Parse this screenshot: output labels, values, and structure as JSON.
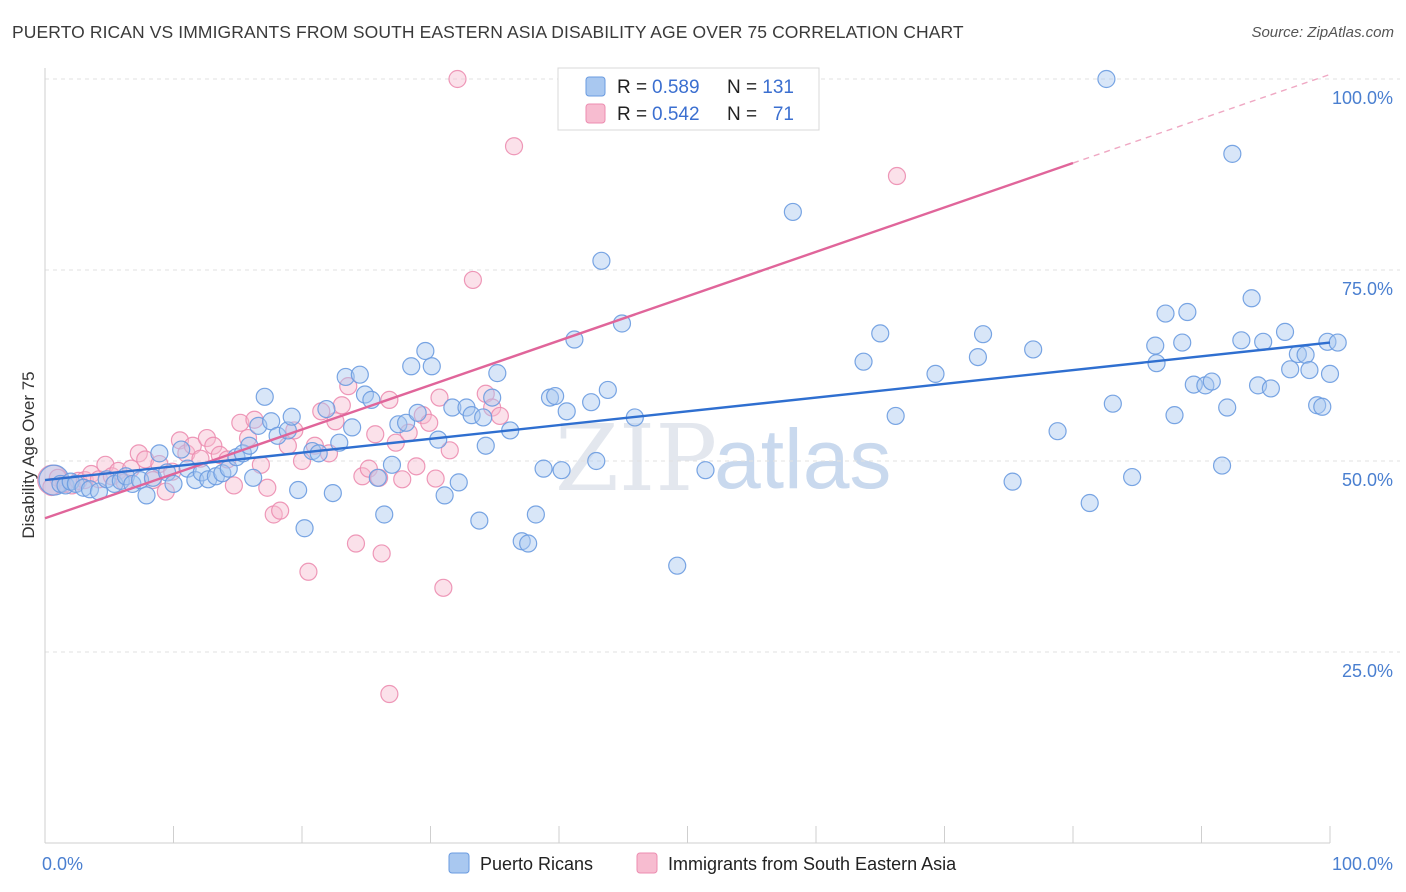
{
  "header": {
    "title": "PUERTO RICAN VS IMMIGRANTS FROM SOUTH EASTERN ASIA DISABILITY AGE OVER 75 CORRELATION CHART",
    "source": "Source: ZipAtlas.com"
  },
  "watermark": {
    "zip": "ZIP",
    "atlas": "atlas"
  },
  "chart_data": {
    "type": "scatter",
    "title": "PUERTO RICAN VS IMMIGRANTS FROM SOUTH EASTERN ASIA DISABILITY AGE OVER 75 CORRELATION CHART",
    "xlabel": "",
    "ylabel": "Disability Age Over 75",
    "xlim": [
      0,
      100
    ],
    "ylim": [
      0,
      100
    ],
    "x_tick_labels": [
      "0.0%",
      "100.0%"
    ],
    "y_tick_labels": [
      "25.0%",
      "50.0%",
      "75.0%",
      "100.0%"
    ],
    "y_ticks": [
      25,
      50,
      75,
      100
    ],
    "grid": true,
    "legend_placement": "top-center",
    "colors": {
      "blue_fill": "#a9c8f0",
      "blue_stroke": "#6a9be0",
      "blue_line": "#2f6fd0",
      "pink_fill": "#f7bcd0",
      "pink_stroke": "#ec8db0",
      "pink_line": "#e0659a"
    },
    "legend": [
      {
        "r_label": "R = ",
        "r_value": "0.589",
        "n_label": "N = ",
        "n_value": "131"
      },
      {
        "r_label": "R = ",
        "r_value": "0.542",
        "n_label": "N = ",
        "n_value": "71"
      }
    ],
    "series": [
      {
        "name": "Puerto Ricans",
        "trend": {
          "x": [
            0,
            100
          ],
          "y": [
            47.5,
            65.5
          ]
        },
        "points": [
          [
            0.7,
            47.5
          ],
          [
            1.2,
            47.0
          ],
          [
            1.6,
            46.8
          ],
          [
            2.0,
            47.3
          ],
          [
            2.4,
            47.0
          ],
          [
            3.0,
            46.5
          ],
          [
            3.5,
            46.3
          ],
          [
            4.2,
            46.0
          ],
          [
            4.8,
            47.6
          ],
          [
            5.4,
            47.0
          ],
          [
            5.9,
            47.4
          ],
          [
            6.3,
            48.0
          ],
          [
            6.8,
            47.0
          ],
          [
            7.4,
            47.5
          ],
          [
            7.9,
            45.5
          ],
          [
            8.4,
            47.8
          ],
          [
            8.9,
            51.0
          ],
          [
            9.5,
            48.5
          ],
          [
            10.0,
            47.0
          ],
          [
            10.6,
            51.5
          ],
          [
            11.1,
            49.0
          ],
          [
            11.7,
            47.5
          ],
          [
            12.2,
            48.5
          ],
          [
            12.7,
            47.6
          ],
          [
            13.3,
            48.0
          ],
          [
            13.8,
            48.4
          ],
          [
            14.3,
            49.0
          ],
          [
            14.9,
            50.5
          ],
          [
            15.4,
            51.0
          ],
          [
            15.9,
            52.0
          ],
          [
            16.2,
            47.8
          ],
          [
            16.6,
            54.6
          ],
          [
            17.1,
            58.4
          ],
          [
            17.6,
            55.2
          ],
          [
            18.1,
            53.3
          ],
          [
            18.9,
            54.0
          ],
          [
            19.2,
            55.8
          ],
          [
            19.7,
            46.2
          ],
          [
            20.2,
            41.2
          ],
          [
            20.8,
            51.3
          ],
          [
            21.3,
            51.0
          ],
          [
            21.9,
            56.8
          ],
          [
            22.4,
            45.8
          ],
          [
            22.9,
            52.4
          ],
          [
            23.4,
            61.0
          ],
          [
            23.9,
            54.4
          ],
          [
            24.5,
            61.3
          ],
          [
            24.9,
            58.7
          ],
          [
            25.4,
            58.0
          ],
          [
            25.9,
            47.8
          ],
          [
            26.4,
            43.0
          ],
          [
            27.0,
            49.5
          ],
          [
            27.5,
            54.8
          ],
          [
            28.1,
            55.0
          ],
          [
            28.5,
            62.4
          ],
          [
            29.0,
            56.3
          ],
          [
            29.6,
            64.4
          ],
          [
            30.1,
            62.4
          ],
          [
            30.6,
            52.8
          ],
          [
            31.1,
            45.5
          ],
          [
            31.7,
            57.0
          ],
          [
            32.2,
            47.2
          ],
          [
            32.8,
            57.0
          ],
          [
            33.2,
            56.0
          ],
          [
            33.8,
            42.2
          ],
          [
            34.3,
            52.0
          ],
          [
            34.8,
            58.3
          ],
          [
            35.2,
            61.5
          ],
          [
            36.2,
            54.0
          ],
          [
            37.1,
            39.5
          ],
          [
            37.6,
            39.2
          ],
          [
            38.2,
            43.0
          ],
          [
            38.8,
            49.0
          ],
          [
            39.3,
            58.3
          ],
          [
            39.7,
            58.5
          ],
          [
            40.2,
            48.8
          ],
          [
            40.6,
            56.5
          ],
          [
            41.2,
            65.9
          ],
          [
            42.5,
            57.7
          ],
          [
            42.9,
            50.0
          ],
          [
            43.3,
            76.2
          ],
          [
            43.8,
            59.3
          ],
          [
            44.9,
            68.0
          ],
          [
            45.9,
            55.7
          ],
          [
            49.2,
            36.3
          ],
          [
            51.4,
            48.8
          ],
          [
            58.2,
            82.6
          ],
          [
            63.7,
            63.0
          ],
          [
            65.0,
            66.7
          ],
          [
            66.2,
            55.9
          ],
          [
            69.3,
            61.4
          ],
          [
            72.6,
            63.6
          ],
          [
            73.0,
            66.6
          ],
          [
            75.3,
            47.3
          ],
          [
            76.9,
            64.6
          ],
          [
            78.8,
            53.9
          ],
          [
            81.3,
            44.5
          ],
          [
            83.1,
            57.5
          ],
          [
            84.6,
            47.9
          ],
          [
            86.4,
            65.1
          ],
          [
            86.5,
            62.8
          ],
          [
            87.2,
            69.3
          ],
          [
            87.9,
            56.0
          ],
          [
            88.5,
            65.5
          ],
          [
            88.9,
            69.5
          ],
          [
            89.4,
            60.0
          ],
          [
            90.3,
            59.9
          ],
          [
            90.8,
            60.4
          ],
          [
            91.6,
            49.4
          ],
          [
            92.0,
            57.0
          ],
          [
            92.4,
            90.2
          ],
          [
            93.1,
            65.8
          ],
          [
            93.9,
            71.3
          ],
          [
            94.4,
            59.9
          ],
          [
            94.8,
            65.6
          ],
          [
            95.4,
            59.5
          ],
          [
            96.5,
            66.9
          ],
          [
            96.9,
            62.0
          ],
          [
            97.5,
            64.0
          ],
          [
            98.1,
            63.9
          ],
          [
            98.4,
            61.9
          ],
          [
            99.0,
            57.3
          ],
          [
            99.4,
            57.1
          ],
          [
            99.8,
            65.6
          ],
          [
            100.0,
            61.4
          ],
          [
            100.6,
            65.5
          ],
          [
            82.6,
            100.0
          ],
          [
            34.1,
            55.7
          ]
        ]
      },
      {
        "name": "Immigrants from South Eastern Asia",
        "trend": {
          "x": [
            0,
            80
          ],
          "y": [
            42.5,
            89.0
          ]
        },
        "trend_dashed": {
          "x": [
            80,
            100
          ],
          "y": [
            89.0,
            100.6
          ]
        },
        "points": [
          [
            0.6,
            47.5
          ],
          [
            1.0,
            47.8
          ],
          [
            1.5,
            47.0
          ],
          [
            2.1,
            46.8
          ],
          [
            2.6,
            47.4
          ],
          [
            3.1,
            47.5
          ],
          [
            3.6,
            48.3
          ],
          [
            4.2,
            47.6
          ],
          [
            4.7,
            49.5
          ],
          [
            5.2,
            48.0
          ],
          [
            5.7,
            48.7
          ],
          [
            6.2,
            47.2
          ],
          [
            6.7,
            49.0
          ],
          [
            7.3,
            51.0
          ],
          [
            7.8,
            50.2
          ],
          [
            8.4,
            47.5
          ],
          [
            8.9,
            49.6
          ],
          [
            9.4,
            46.0
          ],
          [
            9.9,
            48.6
          ],
          [
            10.5,
            52.7
          ],
          [
            11.0,
            51.0
          ],
          [
            11.5,
            52.0
          ],
          [
            12.1,
            50.3
          ],
          [
            12.6,
            53.0
          ],
          [
            13.1,
            52.0
          ],
          [
            13.6,
            50.8
          ],
          [
            14.2,
            50.2
          ],
          [
            14.7,
            46.8
          ],
          [
            15.2,
            55.0
          ],
          [
            15.8,
            53.0
          ],
          [
            16.3,
            55.4
          ],
          [
            16.8,
            49.5
          ],
          [
            17.3,
            46.5
          ],
          [
            17.8,
            43.0
          ],
          [
            18.3,
            43.5
          ],
          [
            18.9,
            52.0
          ],
          [
            19.4,
            54.0
          ],
          [
            20.0,
            50.0
          ],
          [
            20.5,
            35.5
          ],
          [
            21.0,
            52.0
          ],
          [
            21.5,
            56.5
          ],
          [
            22.1,
            51.0
          ],
          [
            22.6,
            55.2
          ],
          [
            23.1,
            57.3
          ],
          [
            23.6,
            59.8
          ],
          [
            24.2,
            39.2
          ],
          [
            24.7,
            48.0
          ],
          [
            25.2,
            49.0
          ],
          [
            25.7,
            53.5
          ],
          [
            26.2,
            37.9
          ],
          [
            26.8,
            58.0
          ],
          [
            27.3,
            52.4
          ],
          [
            27.8,
            47.6
          ],
          [
            28.3,
            53.7
          ],
          [
            28.9,
            49.3
          ],
          [
            29.4,
            56.0
          ],
          [
            29.9,
            55.0
          ],
          [
            30.4,
            47.7
          ],
          [
            31.0,
            33.4
          ],
          [
            31.5,
            51.4
          ],
          [
            32.1,
            100.0
          ],
          [
            33.3,
            73.7
          ],
          [
            34.3,
            58.8
          ],
          [
            34.8,
            57.0
          ],
          [
            35.4,
            55.9
          ],
          [
            36.5,
            91.2
          ],
          [
            26.0,
            47.8
          ],
          [
            26.8,
            19.5
          ],
          [
            30.7,
            58.3
          ],
          [
            66.3,
            87.3
          ],
          [
            0.5,
            46.6
          ]
        ]
      }
    ],
    "bottom_legend": [
      "Puerto Ricans",
      "Immigrants from South Eastern Asia"
    ]
  }
}
